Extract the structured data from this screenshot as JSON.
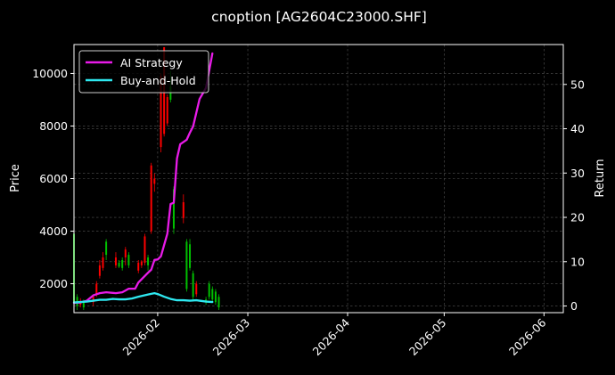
{
  "chart_data": {
    "type": "line",
    "title": "cnoption [AG2604C23000.SHF]",
    "xlabel": "",
    "ylabel": "Price",
    "y2label": "Return",
    "x_ticks": [
      "2026-02",
      "2026-03",
      "2026-04",
      "2026-05",
      "2026-06"
    ],
    "x_range": [
      "2026-01-06",
      "2026-06-07"
    ],
    "ylim": [
      900,
      11100
    ],
    "y_ticks": [
      2000,
      4000,
      6000,
      8000,
      10000
    ],
    "y2lim": [
      -1.5,
      59
    ],
    "y2_ticks": [
      0,
      10,
      20,
      30,
      40,
      50
    ],
    "grid": true,
    "legend_position": "top-left",
    "colors": {
      "up": "#ff0000",
      "down": "#00c000",
      "ai_strategy": "#e81be8",
      "buy_and_hold": "#2ee8f0",
      "background": "#000000",
      "axes": "#ffffff"
    },
    "candles": [
      {
        "date": "2026-01-06",
        "open": 3900,
        "high": 4300,
        "low": 1200,
        "close": 1300
      },
      {
        "date": "2026-01-07",
        "open": 1500,
        "high": 1600,
        "low": 1000,
        "close": 1150
      },
      {
        "date": "2026-01-08",
        "open": 1200,
        "high": 1450,
        "low": 1100,
        "close": 1350
      },
      {
        "date": "2026-01-09",
        "open": 1350,
        "high": 1400,
        "low": 1000,
        "close": 1100
      },
      {
        "date": "2026-01-12",
        "open": 1300,
        "high": 1600,
        "low": 1150,
        "close": 1500
      },
      {
        "date": "2026-01-13",
        "open": 1600,
        "high": 2100,
        "low": 1500,
        "close": 2000
      },
      {
        "date": "2026-01-14",
        "open": 2300,
        "high": 2900,
        "low": 2200,
        "close": 2700
      },
      {
        "date": "2026-01-15",
        "open": 2600,
        "high": 3200,
        "low": 2500,
        "close": 3000
      },
      {
        "date": "2026-01-16",
        "open": 3600,
        "high": 3700,
        "low": 2900,
        "close": 3100
      },
      {
        "date": "2026-01-19",
        "open": 2700,
        "high": 3200,
        "low": 2600,
        "close": 3000
      },
      {
        "date": "2026-01-20",
        "open": 2800,
        "high": 2900,
        "low": 2600,
        "close": 2650
      },
      {
        "date": "2026-01-21",
        "open": 2900,
        "high": 3000,
        "low": 2500,
        "close": 2600
      },
      {
        "date": "2026-01-22",
        "open": 3000,
        "high": 3400,
        "low": 2700,
        "close": 3300
      },
      {
        "date": "2026-01-23",
        "open": 3100,
        "high": 3200,
        "low": 2600,
        "close": 2700
      },
      {
        "date": "2026-01-26",
        "open": 2500,
        "high": 2900,
        "low": 2400,
        "close": 2800
      },
      {
        "date": "2026-01-27",
        "open": 2700,
        "high": 2900,
        "low": 2600,
        "close": 2850
      },
      {
        "date": "2026-01-28",
        "open": 2800,
        "high": 3900,
        "low": 2700,
        "close": 3800
      },
      {
        "date": "2026-01-29",
        "open": 3000,
        "high": 3100,
        "low": 2500,
        "close": 2700
      },
      {
        "date": "2026-01-30",
        "open": 4000,
        "high": 6600,
        "low": 3900,
        "close": 6500
      },
      {
        "date": "2026-01-31",
        "open": 5800,
        "high": 6200,
        "low": 5500,
        "close": 6000
      },
      {
        "date": "2026-02-02",
        "open": 7200,
        "high": 10000,
        "low": 7000,
        "close": 9900
      },
      {
        "date": "2026-02-03",
        "open": 7700,
        "high": 11000,
        "low": 7600,
        "close": 11000
      },
      {
        "date": "2026-02-04",
        "open": 8100,
        "high": 9200,
        "low": 8000,
        "close": 9100
      },
      {
        "date": "2026-02-05",
        "open": 9500,
        "high": 10100,
        "low": 8900,
        "close": 9000
      },
      {
        "date": "2026-02-06",
        "open": 5600,
        "high": 5700,
        "low": 3900,
        "close": 4100
      },
      {
        "date": "2026-02-09",
        "open": 4500,
        "high": 5400,
        "low": 4300,
        "close": 5100
      },
      {
        "date": "2026-02-10",
        "open": 3600,
        "high": 3700,
        "low": 1700,
        "close": 1800
      },
      {
        "date": "2026-02-11",
        "open": 3500,
        "high": 3700,
        "low": 2500,
        "close": 2600
      },
      {
        "date": "2026-02-12",
        "open": 2400,
        "high": 2500,
        "low": 1400,
        "close": 1500
      },
      {
        "date": "2026-02-13",
        "open": 1600,
        "high": 2100,
        "low": 1500,
        "close": 2000
      },
      {
        "date": "2026-02-16",
        "open": 1400,
        "high": 1500,
        "low": 1200,
        "close": 1300
      },
      {
        "date": "2026-02-17",
        "open": 2000,
        "high": 2100,
        "low": 1400,
        "close": 1500
      },
      {
        "date": "2026-02-18",
        "open": 1800,
        "high": 1900,
        "low": 1300,
        "close": 1400
      },
      {
        "date": "2026-02-19",
        "open": 1700,
        "high": 1800,
        "low": 1200,
        "close": 1300
      },
      {
        "date": "2026-02-20",
        "open": 1500,
        "high": 1600,
        "low": 1000,
        "close": 1100
      }
    ],
    "series": [
      {
        "name": "AI Strategy",
        "points": [
          [
            "2026-01-06",
            0.7
          ],
          [
            "2026-01-08",
            0.8
          ],
          [
            "2026-01-10",
            1.2
          ],
          [
            "2026-01-12",
            2.4
          ],
          [
            "2026-01-14",
            2.9
          ],
          [
            "2026-01-16",
            3.1
          ],
          [
            "2026-01-19",
            2.9
          ],
          [
            "2026-01-21",
            3.1
          ],
          [
            "2026-01-23",
            3.9
          ],
          [
            "2026-01-25",
            3.9
          ],
          [
            "2026-01-26",
            5.3
          ],
          [
            "2026-01-29",
            7.5
          ],
          [
            "2026-01-30",
            8.2
          ],
          [
            "2026-01-31",
            10.4
          ],
          [
            "2026-02-01",
            10.5
          ],
          [
            "2026-02-02",
            11.2
          ],
          [
            "2026-02-04",
            16.3
          ],
          [
            "2026-02-05",
            23.0
          ],
          [
            "2026-02-06",
            23.3
          ],
          [
            "2026-02-07",
            33.3
          ],
          [
            "2026-02-08",
            36.5
          ],
          [
            "2026-02-10",
            37.5
          ],
          [
            "2026-02-11",
            39.1
          ],
          [
            "2026-02-12",
            40.5
          ],
          [
            "2026-02-14",
            46.7
          ],
          [
            "2026-02-16",
            49.2
          ],
          [
            "2026-02-18",
            57.0
          ]
        ]
      },
      {
        "name": "Buy-and-Hold",
        "points": [
          [
            "2026-01-06",
            0.8
          ],
          [
            "2026-01-08",
            0.9
          ],
          [
            "2026-01-10",
            1.0
          ],
          [
            "2026-01-12",
            1.2
          ],
          [
            "2026-01-14",
            1.4
          ],
          [
            "2026-01-16",
            1.4
          ],
          [
            "2026-01-18",
            1.6
          ],
          [
            "2026-01-20",
            1.5
          ],
          [
            "2026-01-22",
            1.5
          ],
          [
            "2026-01-24",
            1.7
          ],
          [
            "2026-01-26",
            2.1
          ],
          [
            "2026-01-29",
            2.6
          ],
          [
            "2026-01-31",
            2.9
          ],
          [
            "2026-02-01",
            2.7
          ],
          [
            "2026-02-03",
            2.1
          ],
          [
            "2026-02-05",
            1.6
          ],
          [
            "2026-02-07",
            1.3
          ],
          [
            "2026-02-09",
            1.3
          ],
          [
            "2026-02-11",
            1.2
          ],
          [
            "2026-02-13",
            1.3
          ],
          [
            "2026-02-15",
            1.1
          ],
          [
            "2026-02-16",
            1.0
          ],
          [
            "2026-02-18",
            0.9
          ]
        ]
      }
    ]
  }
}
